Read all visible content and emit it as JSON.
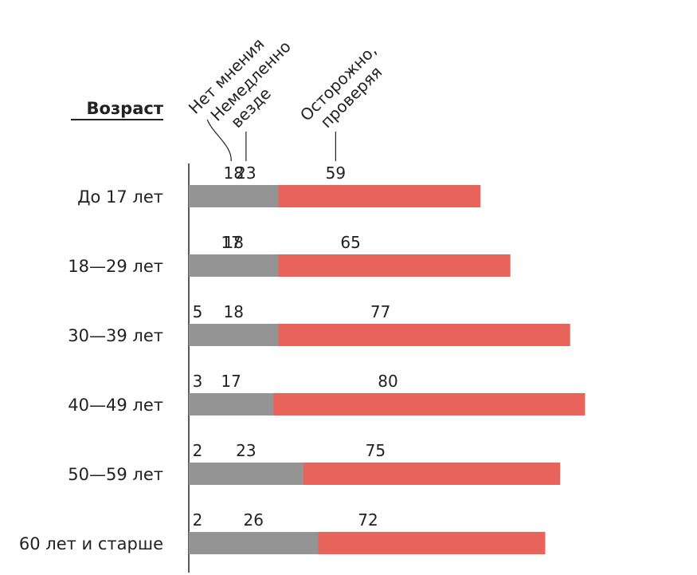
{
  "chart_data": {
    "type": "bar",
    "orientation": "horizontal",
    "stacked": true,
    "normalized_percent": true,
    "title": "Возраст",
    "categories": [
      "До 17 лет",
      "18—29 лет",
      "30—39 лет",
      "40—49 лет",
      "50—59 лет",
      "60 лет и старше"
    ],
    "series": [
      {
        "name": [
          "Немедленно",
          "везде"
        ],
        "color": "#3a3a3a",
        "values": [
          23,
          17,
          5,
          3,
          2,
          2
        ]
      },
      {
        "name": [
          "Осторожно,",
          "проверяя"
        ],
        "color": "#e8645a",
        "values": [
          59,
          65,
          77,
          80,
          75,
          72
        ]
      },
      {
        "name": [
          "Нет мнения"
        ],
        "color": "#949494",
        "values": [
          18,
          18,
          18,
          17,
          23,
          26
        ]
      }
    ],
    "xlim": [
      0,
      100
    ],
    "grid": false,
    "legend": "top, rotated series labels"
  }
}
